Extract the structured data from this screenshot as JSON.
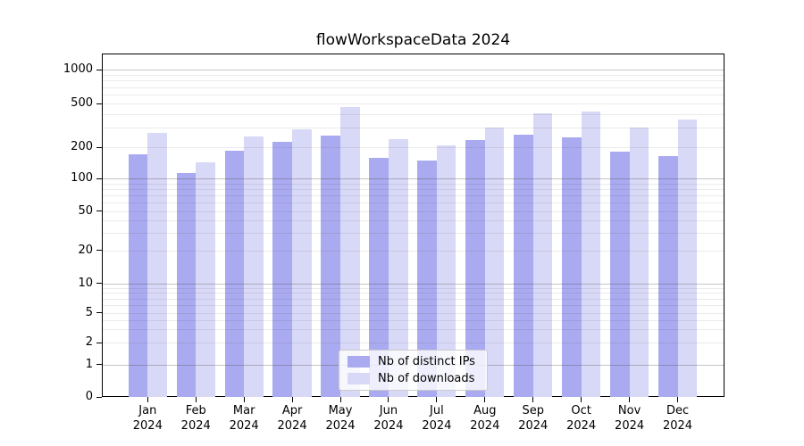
{
  "chart_data": {
    "type": "bar",
    "title": "flowWorkspaceData 2024",
    "categories": [
      "Jan",
      "Feb",
      "Mar",
      "Apr",
      "May",
      "Jun",
      "Jul",
      "Aug",
      "Sep",
      "Oct",
      "Nov",
      "Dec"
    ],
    "category_year": "2024",
    "series": [
      {
        "name": "Nb of distinct IPs",
        "values": [
          172,
          113,
          185,
          225,
          253,
          157,
          148,
          234,
          261,
          247,
          181,
          165
        ]
      },
      {
        "name": "Nb of downloads",
        "values": [
          270,
          144,
          252,
          291,
          464,
          235,
          209,
          300,
          409,
          420,
          300,
          359
        ]
      }
    ],
    "yscale": "symlog",
    "ytick_labels": [
      "0",
      "1",
      "2",
      "5",
      "10",
      "20",
      "50",
      "100",
      "200",
      "500",
      "1000"
    ],
    "yticks": [
      0,
      1,
      2,
      5,
      10,
      20,
      50,
      100,
      200,
      500,
      1000
    ],
    "ylim": [
      0,
      1400
    ],
    "grid": true,
    "legend_position": "lower center"
  },
  "colors": {
    "distinct_ips": "#aaaaf0",
    "downloads": "#d8d8f7"
  }
}
